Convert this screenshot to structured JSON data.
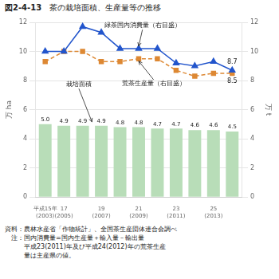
{
  "chart_data": {
    "type": "bar",
    "figure_label": "図2-4-13",
    "title": "茶の栽培面積、生産量等の推移",
    "categories": [
      [
        "平成15年",
        "(2003)"
      ],
      [
        "17",
        "(2005)"
      ],
      null,
      [
        "19",
        "(2007)"
      ],
      null,
      [
        "21",
        "(2009)"
      ],
      null,
      [
        "23",
        "(2011)"
      ],
      null,
      [
        "25",
        "(2013)"
      ],
      null
    ],
    "series": [
      {
        "type": "bar",
        "color": "#b8ddb8",
        "values": [
          5.0,
          4.9,
          4.9,
          4.9,
          4.8,
          4.8,
          4.7,
          4.7,
          4.6,
          4.6,
          4.5
        ],
        "value_labels": [
          "5.0",
          "4.9",
          "4.9",
          "4.9",
          "4.8",
          "4.8",
          "4.7",
          "4.7",
          "4.6",
          "4.6",
          "4.5"
        ],
        "data_labels": true
      },
      {
        "type": "line",
        "axis": "y2",
        "color": "#2255cc",
        "marker": "triangle",
        "line_style": "solid",
        "values": [
          10.0,
          10.0,
          11.7,
          11.3,
          10.2,
          10.2,
          10.2,
          9.2,
          9.0,
          9.3,
          8.7
        ]
      },
      {
        "type": "line",
        "axis": "y2",
        "color": "#dd8833",
        "marker": "square",
        "line_style": "dashed",
        "values": [
          9.3,
          10.0,
          10.0,
          9.3,
          9.3,
          9.5,
          9.5,
          8.7,
          8.3,
          8.5,
          8.5
        ]
      }
    ],
    "ylabel": "万 ha",
    "y2label": "万 t",
    "ylim": [
      0,
      12
    ],
    "yticks": [
      0,
      2,
      4,
      6,
      8,
      10,
      12
    ],
    "y2lim": [
      0,
      12
    ],
    "y2ticks": [
      0,
      2,
      4,
      6,
      8,
      10,
      12
    ],
    "grid": true,
    "annotations": [
      {
        "text": "緑茶国内消費量（右目盛）",
        "x": 5,
        "y": 10.2,
        "axis": "y2",
        "arrow": true
      },
      {
        "text": "栽培面積",
        "x": 2.5,
        "y": 5.0,
        "axis": "y",
        "arrow": true
      },
      {
        "text": "荒茶生産量（右目盛）",
        "x": 5,
        "y": 9.5,
        "axis": "y2",
        "arrow": true
      },
      {
        "text": "8.7",
        "x": 10,
        "y": 8.7,
        "axis": "y2"
      },
      {
        "text": "8.5",
        "x": 10,
        "y": 8.5,
        "axis": "y2"
      }
    ],
    "notes": [
      "資料：農林水産省「作物統計」、全国茶生産団体連合会調べ",
      "　注：国内消費量=国内生産量＋輸入量－輸出量",
      "　　　平成23(2011)年及び平成24(2012)年の荒茶生産",
      "　　　量は主産県の値。"
    ]
  }
}
